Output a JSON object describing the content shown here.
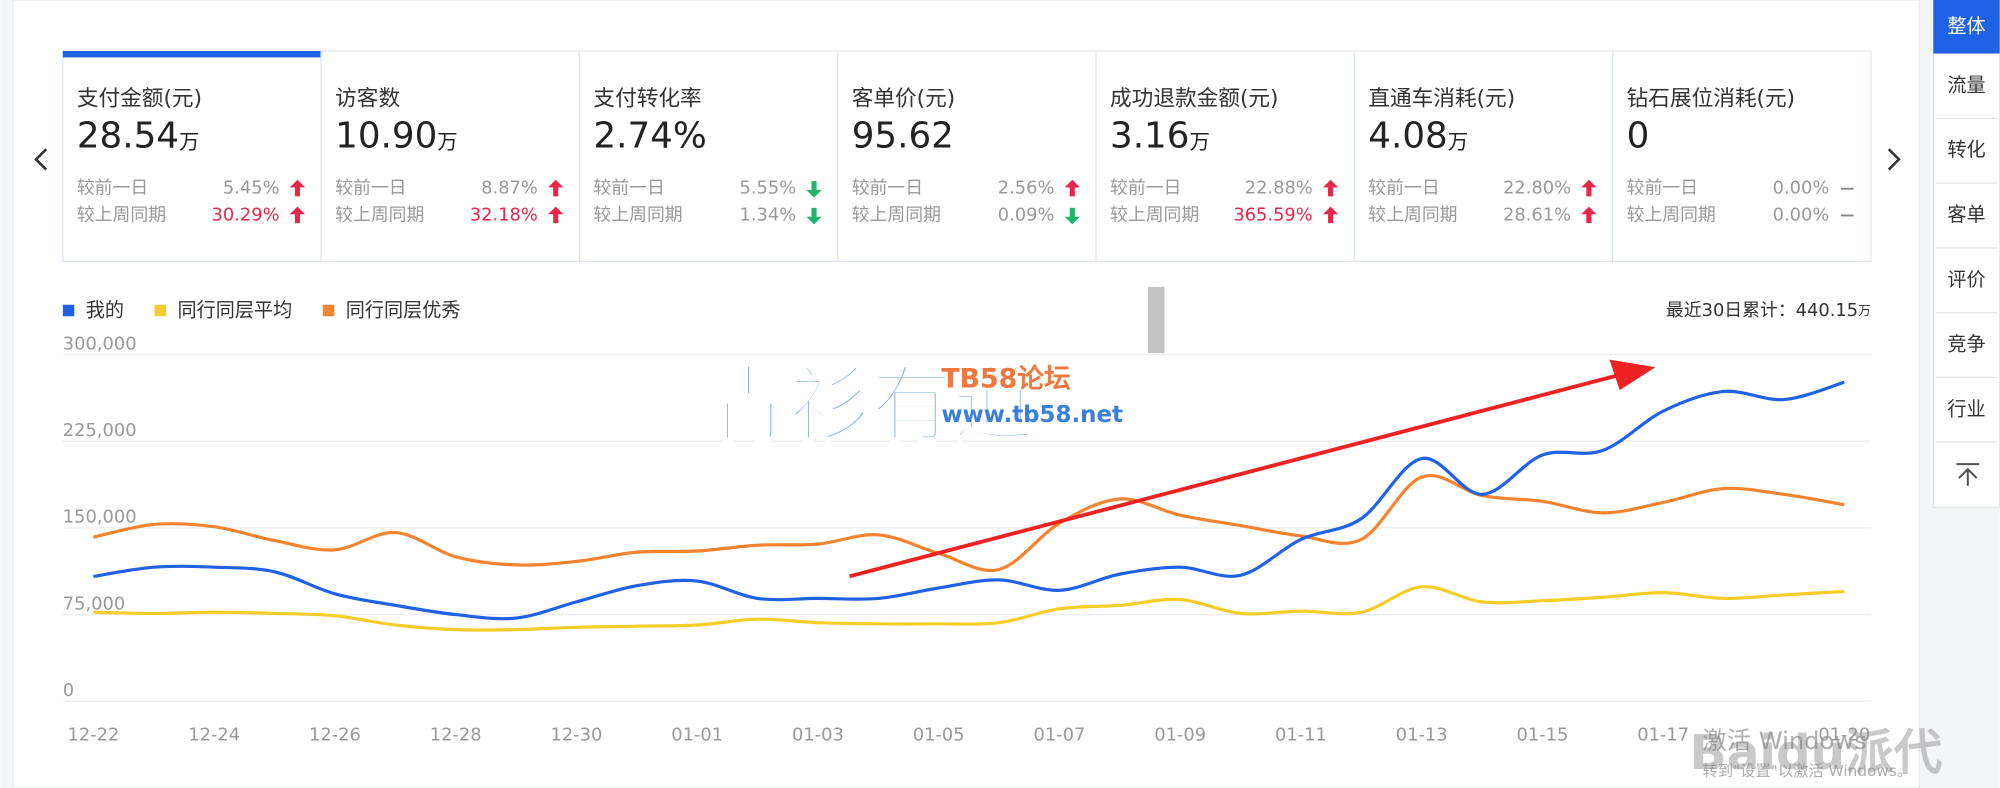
{
  "metrics": [
    {
      "title": "支付金额(元)",
      "value": "28.54",
      "unit": "万",
      "compare": [
        {
          "label": "较前一日",
          "change": "5.45%",
          "trend": "up",
          "highlight": false
        },
        {
          "label": "较上周同期",
          "change": "30.29%",
          "trend": "up",
          "highlight": true
        }
      ]
    },
    {
      "title": "访客数",
      "value": "10.90",
      "unit": "万",
      "compare": [
        {
          "label": "较前一日",
          "change": "8.87%",
          "trend": "up",
          "highlight": false
        },
        {
          "label": "较上周同期",
          "change": "32.18%",
          "trend": "up",
          "highlight": true
        }
      ]
    },
    {
      "title": "支付转化率",
      "value": "2.74%",
      "compare": [
        {
          "label": "较前一日",
          "change": "5.55%",
          "trend": "down",
          "highlight": false
        },
        {
          "label": "较上周同期",
          "change": "1.34%",
          "trend": "down",
          "highlight": false
        }
      ]
    },
    {
      "title": "客单价(元)",
      "value": "95.62",
      "compare": [
        {
          "label": "较前一日",
          "change": "2.56%",
          "trend": "up",
          "highlight": false
        },
        {
          "label": "较上周同期",
          "change": "0.09%",
          "trend": "down",
          "highlight": false
        }
      ]
    },
    {
      "title": "成功退款金额(元)",
      "value": "3.16",
      "unit": "万",
      "compare": [
        {
          "label": "较前一日",
          "change": "22.88%",
          "trend": "up",
          "highlight": false
        },
        {
          "label": "较上周同期",
          "change": "365.59%",
          "trend": "up",
          "highlight": true
        }
      ]
    },
    {
      "title": "直通车消耗(元)",
      "value": "4.08",
      "unit": "万",
      "compare": [
        {
          "label": "较前一日",
          "change": "22.80%",
          "trend": "up",
          "highlight": false
        },
        {
          "label": "较上周同期",
          "change": "28.61%",
          "trend": "up",
          "highlight": false
        }
      ]
    },
    {
      "title": "钻石展位消耗(元)",
      "value": "0",
      "compare": [
        {
          "label": "较前一日",
          "change": "0.00%",
          "trend": "flat",
          "highlight": false
        },
        {
          "label": "较上周同期",
          "change": "0.00%",
          "trend": "flat",
          "highlight": false
        }
      ]
    }
  ],
  "side_tabs": [
    "整体",
    "流量",
    "转化",
    "客单",
    "评价",
    "竞争",
    "行业"
  ],
  "active_tab": 0,
  "summary": {
    "label": "最近30日累计：",
    "value": "440.15",
    "unit": "万"
  },
  "watermarks": [
    "青衫有道",
    "TB58论坛",
    "www.tb58.net",
    "激活 Windows",
    "转到\"设置\"以激活 Windows。",
    "Baidu派代"
  ],
  "chart_data": {
    "type": "line",
    "categories": [
      "12-22",
      null,
      "12-24",
      null,
      "12-26",
      null,
      "12-28",
      null,
      "12-30",
      null,
      "01-01",
      null,
      "01-03",
      null,
      "01-05",
      null,
      "01-07",
      null,
      "01-09",
      null,
      "01-11",
      null,
      "01-13",
      null,
      "01-15",
      null,
      "01-17",
      null,
      null,
      "01-20"
    ],
    "series": [
      {
        "name": "我的",
        "color": "#2062e6",
        "values": [
          108000,
          116000,
          116000,
          112000,
          93000,
          83000,
          75000,
          72000,
          86000,
          100000,
          104000,
          89000,
          89000,
          89000,
          98000,
          105000,
          96000,
          110000,
          116000,
          109000,
          140000,
          158000,
          210000,
          179000,
          213000,
          217000,
          251000,
          268000,
          261000,
          276000
        ]
      },
      {
        "name": "同行同层平均",
        "color": "#f5cd29",
        "values": [
          77000,
          76000,
          77000,
          76000,
          74000,
          66000,
          62000,
          62000,
          64000,
          65000,
          66000,
          71000,
          68000,
          67000,
          67000,
          68000,
          80000,
          83000,
          88000,
          76000,
          78000,
          77000,
          99000,
          86000,
          87000,
          90000,
          94000,
          89000,
          92000,
          95000
        ]
      },
      {
        "name": "同行同层优秀",
        "color": "#f5832f",
        "values": [
          142000,
          153000,
          151000,
          139000,
          131000,
          146000,
          125000,
          118000,
          121000,
          129000,
          130000,
          135000,
          136000,
          144000,
          128000,
          114000,
          154000,
          175000,
          161000,
          152000,
          143000,
          140000,
          194000,
          178000,
          173000,
          163000,
          172000,
          184000,
          179000,
          170000
        ]
      }
    ],
    "ylim": [
      0,
      300000
    ],
    "yticks": [
      0,
      {
        "value": 75000,
        "label": "75,000"
      },
      {
        "value": 150000,
        "label": "150,000"
      },
      {
        "value": 225000,
        "label": "225,000"
      },
      {
        "value": 300000,
        "label": "300,000"
      }
    ],
    "grid": true
  }
}
